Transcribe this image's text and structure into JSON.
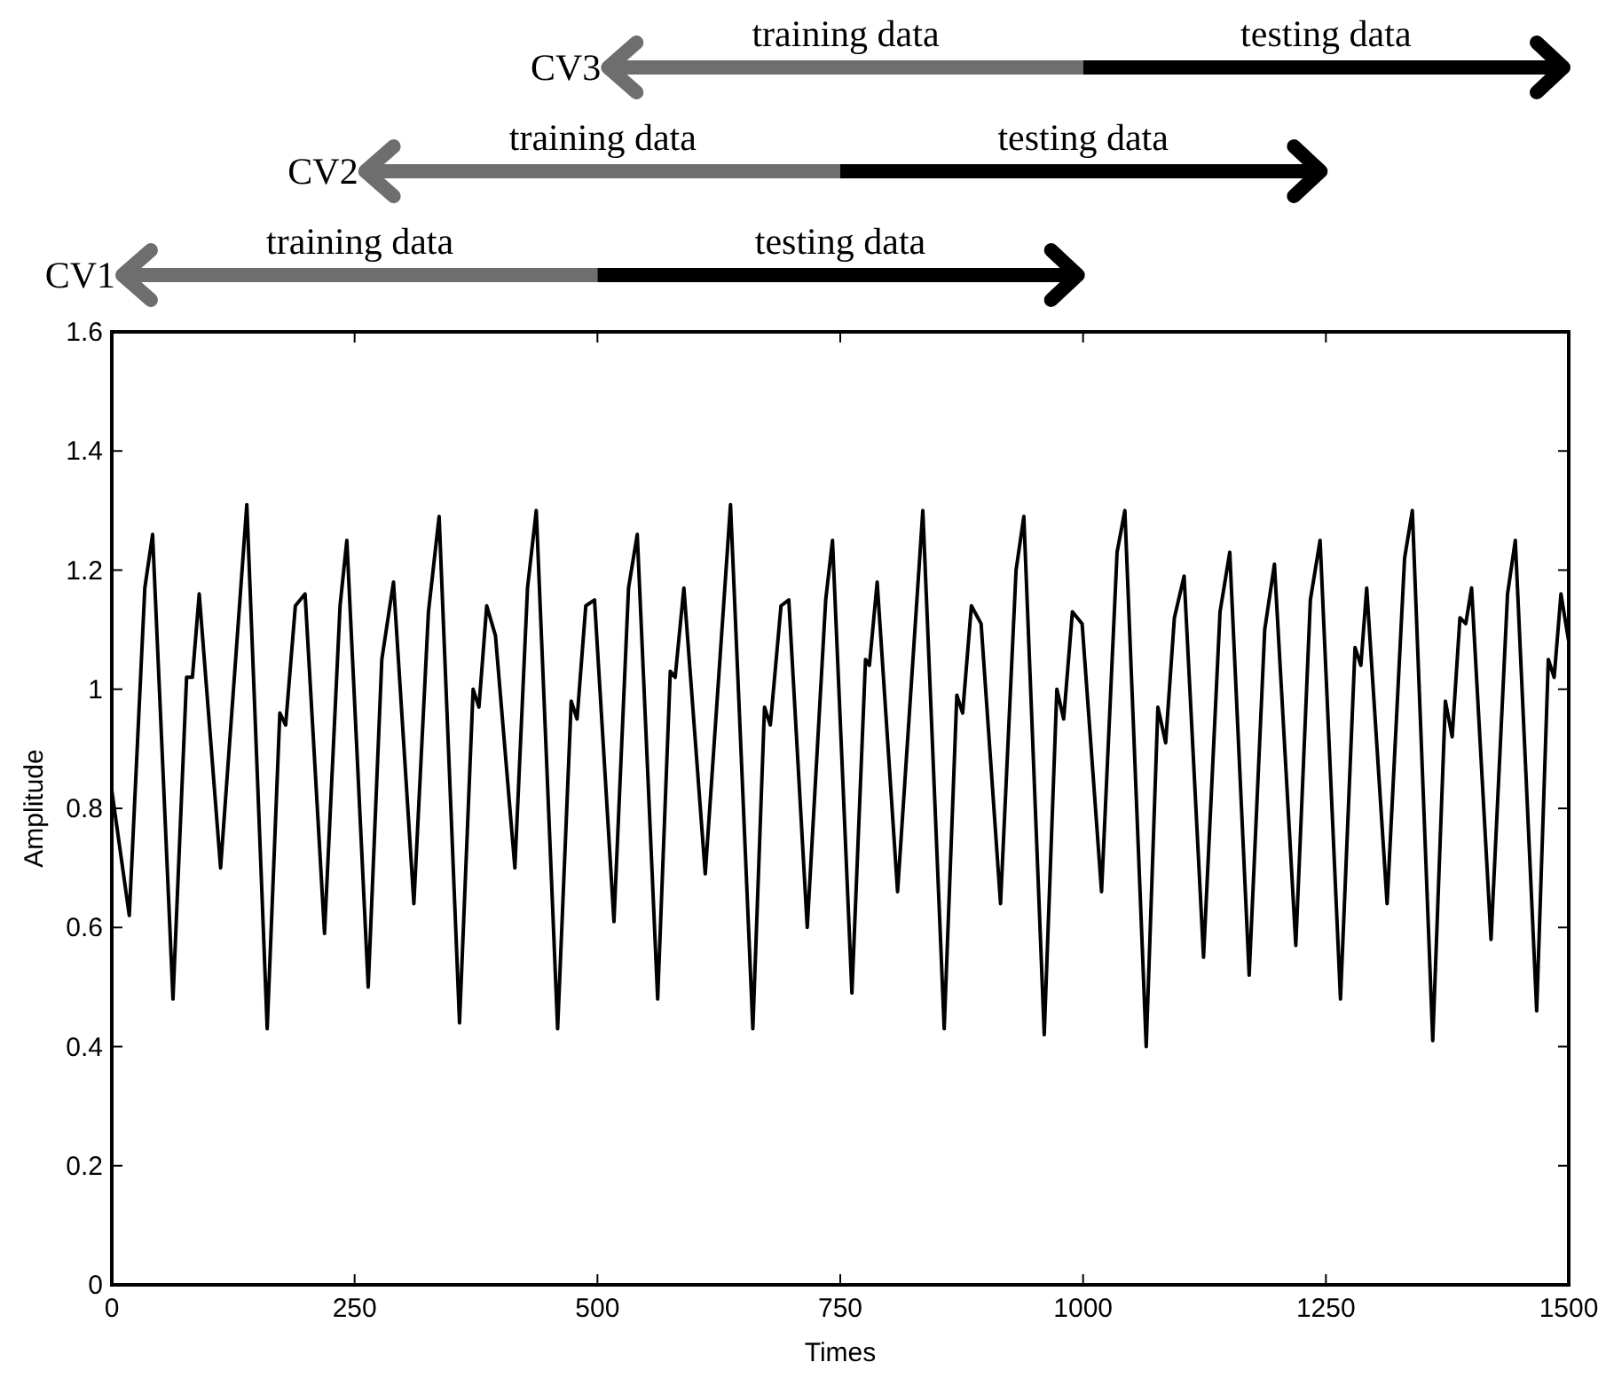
{
  "chart_data": {
    "type": "line",
    "xlabel": "Times",
    "ylabel": "Amplitude",
    "annotations": [
      "CV3",
      "training data",
      "testing data",
      "CV2",
      "training data",
      "testing data",
      "CV1",
      "training data",
      "testing data"
    ],
    "xlim": [
      0,
      1500
    ],
    "xticks": [
      0,
      250,
      500,
      750,
      1000,
      1250,
      1500
    ],
    "ylim": [
      0,
      1.6
    ],
    "yticks": [
      0,
      0.2,
      0.4,
      0.6,
      0.8,
      1,
      1.2,
      1.4,
      1.6
    ],
    "grid": false,
    "marker": "none",
    "line_style": "solid",
    "series": [
      {
        "color": "#000000",
        "x": [
          0,
          18,
          34,
          42,
          63,
          77,
          83,
          90,
          112,
          139,
          160,
          173,
          179,
          189,
          199,
          219,
          235,
          242,
          264,
          278,
          290,
          311,
          326,
          337,
          358,
          372,
          378,
          386,
          395,
          415,
          428,
          437,
          459,
          473,
          479,
          488,
          497,
          517,
          532,
          541,
          562,
          575,
          580,
          589,
          611,
          637,
          660,
          672,
          678,
          689,
          697,
          716,
          735,
          742,
          762,
          776,
          780,
          788,
          809,
          835,
          857,
          870,
          876,
          885,
          895,
          915,
          931,
          939,
          960,
          973,
          980,
          989,
          999,
          1019,
          1035,
          1043,
          1065,
          1077,
          1085,
          1094,
          1104,
          1124,
          1141,
          1151,
          1171,
          1187,
          1197,
          1219,
          1234,
          1244,
          1265,
          1280,
          1286,
          1292,
          1313,
          1331,
          1339,
          1360,
          1373,
          1380,
          1388,
          1394,
          1400,
          1420,
          1437,
          1445,
          1467,
          1479,
          1485,
          1492,
          1500
        ],
        "values": [
          0.83,
          0.62,
          1.17,
          1.26,
          0.48,
          1.02,
          1.02,
          1.16,
          0.7,
          1.31,
          0.43,
          0.96,
          0.94,
          1.14,
          1.16,
          0.59,
          1.14,
          1.25,
          0.5,
          1.05,
          1.18,
          0.64,
          1.13,
          1.29,
          0.44,
          1.0,
          0.97,
          1.14,
          1.09,
          0.7,
          1.17,
          1.3,
          0.43,
          0.98,
          0.95,
          1.14,
          1.15,
          0.61,
          1.17,
          1.26,
          0.48,
          1.03,
          1.02,
          1.17,
          0.69,
          1.31,
          0.43,
          0.97,
          0.94,
          1.14,
          1.15,
          0.6,
          1.15,
          1.25,
          0.49,
          1.05,
          1.04,
          1.18,
          0.66,
          1.3,
          0.43,
          0.99,
          0.96,
          1.14,
          1.11,
          0.64,
          1.2,
          1.29,
          0.42,
          1.0,
          0.95,
          1.13,
          1.11,
          0.66,
          1.23,
          1.3,
          0.4,
          0.97,
          0.91,
          1.12,
          1.19,
          0.55,
          1.13,
          1.23,
          0.52,
          1.1,
          1.21,
          0.57,
          1.15,
          1.25,
          0.48,
          1.07,
          1.04,
          1.17,
          0.64,
          1.22,
          1.3,
          0.41,
          0.98,
          0.92,
          1.12,
          1.11,
          1.17,
          0.58,
          1.16,
          1.25,
          0.46,
          1.05,
          1.02,
          1.16,
          1.08
        ]
      }
    ]
  }
}
